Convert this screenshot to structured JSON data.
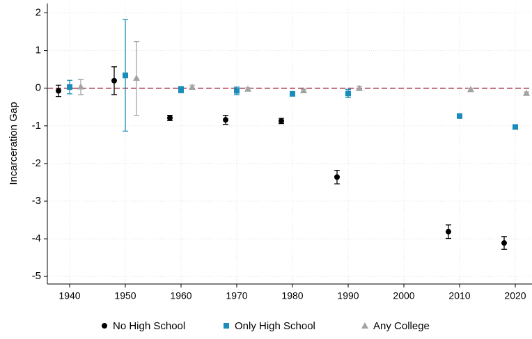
{
  "chart_data": {
    "type": "scatter",
    "y_label": "Incarceration Gap",
    "xlim": [
      1936,
      2023
    ],
    "ylim": [
      -5.2,
      2.25
    ],
    "xticks": [
      1940,
      1950,
      1960,
      1970,
      1980,
      1990,
      2000,
      2010,
      2020
    ],
    "yticks": [
      2,
      1,
      0,
      -1,
      -2,
      -3,
      -4,
      -5
    ],
    "grid": true,
    "reference_line": 0,
    "reference_color": "#9e1f36",
    "legend": "bottom",
    "series": [
      {
        "name": "No High School",
        "color": "#000000",
        "marker": "circle",
        "x": [
          1938,
          1948,
          1958,
          1968,
          1978,
          1988,
          2008,
          2018
        ],
        "values": [
          -0.07,
          0.2,
          -0.79,
          -0.84,
          -0.87,
          -2.36,
          -3.81,
          -4.11
        ],
        "ci_low": [
          -0.22,
          -0.17,
          -0.86,
          -0.96,
          -0.94,
          -2.54,
          -3.99,
          -4.28
        ],
        "ci_high": [
          0.08,
          0.57,
          -0.72,
          -0.72,
          -0.8,
          -2.18,
          -3.63,
          -3.94
        ]
      },
      {
        "name": "Only High School",
        "color": "#1a8cba",
        "marker": "square",
        "x": [
          1940,
          1950,
          1960,
          1970,
          1980,
          1990,
          2010,
          2020
        ],
        "values": [
          0.03,
          0.34,
          -0.04,
          -0.07,
          -0.15,
          -0.14,
          -0.74,
          -1.03
        ],
        "ci_low": [
          -0.15,
          -1.14,
          -0.12,
          -0.17,
          -0.2,
          -0.25,
          -0.8,
          -1.07
        ],
        "ci_high": [
          0.21,
          1.82,
          0.04,
          0.03,
          -0.1,
          -0.03,
          -0.68,
          -0.99
        ]
      },
      {
        "name": "Any College",
        "color": "#a3a3a3",
        "marker": "triangle",
        "x": [
          1942,
          1952,
          1962,
          1972,
          1982,
          1992,
          2012,
          2022
        ],
        "values": [
          0.04,
          0.27,
          0.03,
          -0.02,
          -0.06,
          0.0,
          -0.03,
          -0.13
        ],
        "ci_low": [
          -0.17,
          -0.72,
          -0.02,
          -0.05,
          -0.09,
          -0.05,
          -0.06,
          -0.16
        ],
        "ci_high": [
          0.23,
          1.24,
          0.08,
          0.01,
          -0.03,
          0.05,
          0.0,
          -0.1
        ]
      }
    ]
  }
}
